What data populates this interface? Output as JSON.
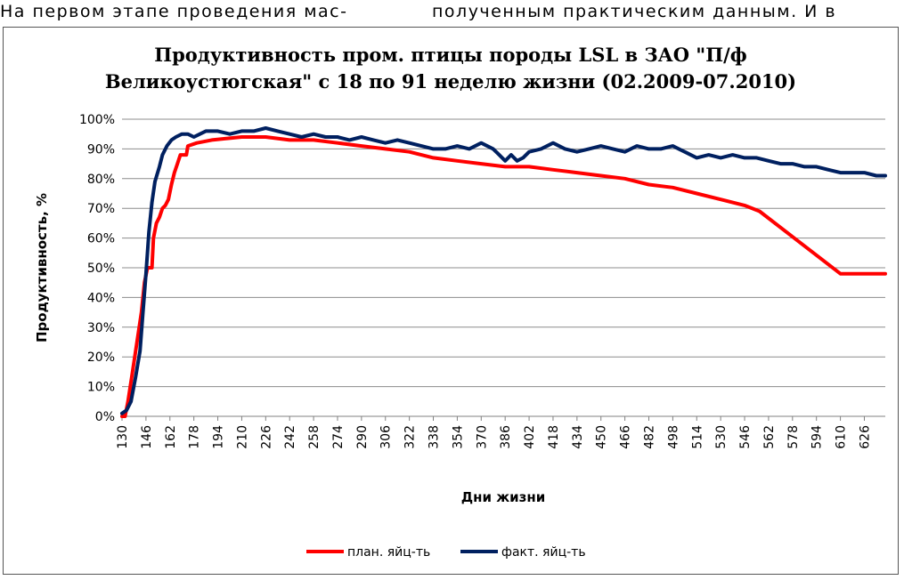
{
  "page_text": {
    "left": "На первом этапе проведения мас-",
    "right": "полученным практическим данным.  И в"
  },
  "chart_data": {
    "type": "line",
    "title_line1": "Продуктивность пром. птицы породы LSL  в ЗАО \"П/ф",
    "title_line2": "Великоустюгская\" с 18 по 91 неделю жизни (02.2009-07.2010)",
    "xlabel": "Дни жизни",
    "ylabel": "Продуктивность, %",
    "x_ticks": [
      130,
      146,
      162,
      178,
      194,
      210,
      226,
      242,
      258,
      274,
      290,
      306,
      322,
      338,
      354,
      370,
      386,
      402,
      418,
      434,
      450,
      466,
      482,
      498,
      514,
      530,
      546,
      562,
      578,
      594,
      610,
      626
    ],
    "y_ticks": [
      "0%",
      "10%",
      "20%",
      "30%",
      "40%",
      "50%",
      "60%",
      "70%",
      "80%",
      "90%",
      "100%"
    ],
    "xlim": [
      130,
      640
    ],
    "ylim": [
      0,
      100
    ],
    "grid": "horizontal",
    "legend_position": "bottom",
    "series": [
      {
        "name": "план. яйц-ть",
        "color": "#ff0000",
        "points": [
          [
            130,
            0
          ],
          [
            132,
            0
          ],
          [
            134,
            5
          ],
          [
            137,
            15
          ],
          [
            140,
            25
          ],
          [
            143,
            35
          ],
          [
            145,
            45
          ],
          [
            147,
            50
          ],
          [
            150,
            50
          ],
          [
            151,
            60
          ],
          [
            153,
            65
          ],
          [
            155,
            67
          ],
          [
            157,
            70
          ],
          [
            159,
            71
          ],
          [
            161,
            73
          ],
          [
            163,
            78
          ],
          [
            165,
            82
          ],
          [
            167,
            85
          ],
          [
            169,
            88
          ],
          [
            173,
            88
          ],
          [
            174,
            91
          ],
          [
            180,
            92
          ],
          [
            190,
            93
          ],
          [
            210,
            94
          ],
          [
            226,
            94
          ],
          [
            242,
            93
          ],
          [
            258,
            93
          ],
          [
            274,
            92
          ],
          [
            290,
            91
          ],
          [
            306,
            90
          ],
          [
            322,
            89
          ],
          [
            338,
            87
          ],
          [
            354,
            86
          ],
          [
            370,
            85
          ],
          [
            386,
            84
          ],
          [
            402,
            84
          ],
          [
            418,
            83
          ],
          [
            434,
            82
          ],
          [
            450,
            81
          ],
          [
            466,
            80
          ],
          [
            482,
            78
          ],
          [
            498,
            77
          ],
          [
            514,
            75
          ],
          [
            530,
            73
          ],
          [
            546,
            71
          ],
          [
            556,
            69
          ],
          [
            610,
            48
          ],
          [
            640,
            48
          ]
        ]
      },
      {
        "name": "факт. яйц-ть",
        "color": "#002060",
        "points": [
          [
            130,
            1
          ],
          [
            133,
            2
          ],
          [
            136,
            5
          ],
          [
            139,
            13
          ],
          [
            142,
            22
          ],
          [
            144,
            35
          ],
          [
            146,
            48
          ],
          [
            148,
            62
          ],
          [
            150,
            72
          ],
          [
            152,
            79
          ],
          [
            155,
            84
          ],
          [
            157,
            88
          ],
          [
            160,
            91
          ],
          [
            163,
            93
          ],
          [
            166,
            94
          ],
          [
            170,
            95
          ],
          [
            174,
            95
          ],
          [
            178,
            94
          ],
          [
            182,
            95
          ],
          [
            186,
            96
          ],
          [
            194,
            96
          ],
          [
            202,
            95
          ],
          [
            210,
            96
          ],
          [
            218,
            96
          ],
          [
            226,
            97
          ],
          [
            234,
            96
          ],
          [
            242,
            95
          ],
          [
            250,
            94
          ],
          [
            258,
            95
          ],
          [
            266,
            94
          ],
          [
            274,
            94
          ],
          [
            282,
            93
          ],
          [
            290,
            94
          ],
          [
            298,
            93
          ],
          [
            306,
            92
          ],
          [
            314,
            93
          ],
          [
            322,
            92
          ],
          [
            330,
            91
          ],
          [
            338,
            90
          ],
          [
            346,
            90
          ],
          [
            354,
            91
          ],
          [
            362,
            90
          ],
          [
            370,
            92
          ],
          [
            378,
            90
          ],
          [
            382,
            88
          ],
          [
            386,
            86
          ],
          [
            390,
            88
          ],
          [
            394,
            86
          ],
          [
            398,
            87
          ],
          [
            402,
            89
          ],
          [
            410,
            90
          ],
          [
            418,
            92
          ],
          [
            426,
            90
          ],
          [
            434,
            89
          ],
          [
            442,
            90
          ],
          [
            450,
            91
          ],
          [
            458,
            90
          ],
          [
            466,
            89
          ],
          [
            474,
            91
          ],
          [
            482,
            90
          ],
          [
            490,
            90
          ],
          [
            498,
            91
          ],
          [
            506,
            89
          ],
          [
            514,
            87
          ],
          [
            522,
            88
          ],
          [
            530,
            87
          ],
          [
            538,
            88
          ],
          [
            546,
            87
          ],
          [
            554,
            87
          ],
          [
            562,
            86
          ],
          [
            570,
            85
          ],
          [
            578,
            85
          ],
          [
            586,
            84
          ],
          [
            594,
            84
          ],
          [
            602,
            83
          ],
          [
            610,
            82
          ],
          [
            618,
            82
          ],
          [
            626,
            82
          ],
          [
            634,
            81
          ],
          [
            640,
            81
          ]
        ]
      }
    ]
  }
}
